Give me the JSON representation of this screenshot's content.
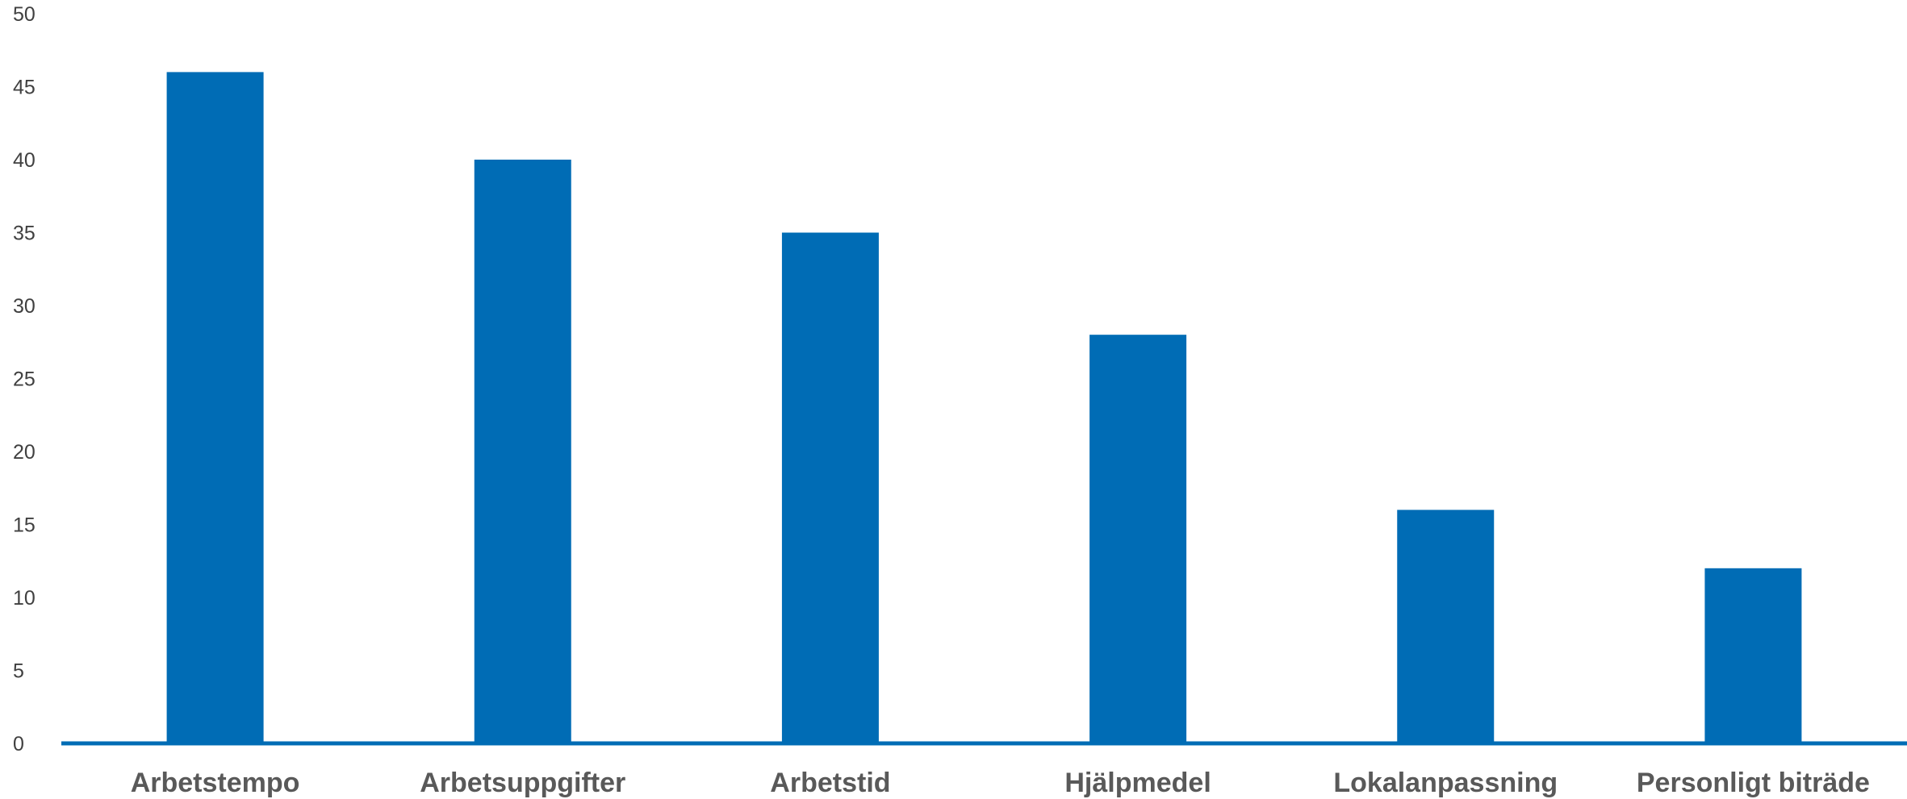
{
  "chart_data": {
    "type": "bar",
    "title": "",
    "xlabel": "",
    "ylabel": "",
    "categories": [
      "Arbetstempo",
      "Arbetsuppgifter",
      "Arbetstid",
      "Hjälpmedel",
      "Lokalanpassning",
      "Personligt biträde"
    ],
    "values": [
      46,
      40,
      35,
      28,
      16,
      12
    ],
    "ylim": [
      0,
      50
    ],
    "yticks": [
      0,
      5,
      10,
      15,
      20,
      25,
      30,
      35,
      40,
      45,
      50
    ],
    "grid": false,
    "legend": "none",
    "colors": {
      "bar": "#006CB5",
      "axis": "#006CB5",
      "tick_text": "#404040",
      "category_text": "#595959"
    }
  }
}
